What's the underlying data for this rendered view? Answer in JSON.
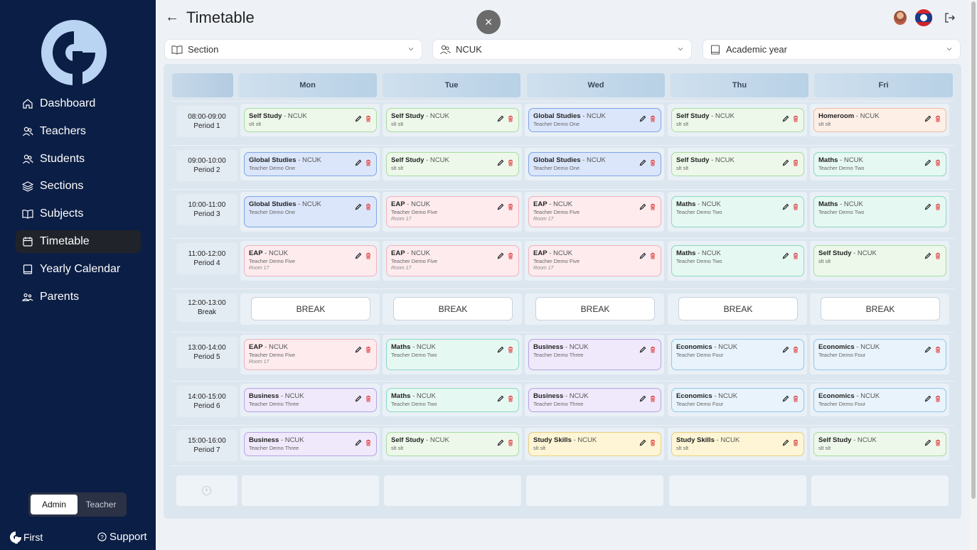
{
  "sidebar": {
    "nav": [
      {
        "label": "Dashboard",
        "icon": "home-icon",
        "active": false
      },
      {
        "label": "Teachers",
        "icon": "users-icon",
        "active": false
      },
      {
        "label": "Students",
        "icon": "users-icon",
        "active": false
      },
      {
        "label": "Sections",
        "icon": "layers-icon",
        "active": false
      },
      {
        "label": "Subjects",
        "icon": "book-open-icon",
        "active": false
      },
      {
        "label": "Timetable",
        "icon": "calendar-icon",
        "active": true
      },
      {
        "label": "Yearly Calendar",
        "icon": "book-icon",
        "active": false
      },
      {
        "label": "Parents",
        "icon": "parents-icon",
        "active": false
      }
    ],
    "roles": {
      "admin": "Admin",
      "teacher": "Teacher",
      "active": "admin"
    },
    "brand": "First",
    "support": "Support"
  },
  "header": {
    "title": "Timetable",
    "close": "×"
  },
  "filters": {
    "section": "Section",
    "group": "NCUK",
    "year": "Academic year"
  },
  "timetable": {
    "days": [
      "Mon",
      "Tue",
      "Wed",
      "Thu",
      "Fri"
    ],
    "break_label": "BREAK",
    "periods": [
      {
        "time": "08:00-09:00",
        "name": "Period 1",
        "cells": [
          {
            "subject": "Self Study",
            "group": "NCUK",
            "teacher": "slt slt",
            "room": "",
            "color": "green"
          },
          {
            "subject": "Self Study",
            "group": "NCUK",
            "teacher": "slt slt",
            "room": "",
            "color": "green"
          },
          {
            "subject": "Global Studies",
            "group": "NCUK",
            "teacher": "Teacher Demo One",
            "room": "",
            "color": "blue"
          },
          {
            "subject": "Self Study",
            "group": "NCUK",
            "teacher": "slt slt",
            "room": "",
            "color": "green"
          },
          {
            "subject": "Homeroom",
            "group": "NCUK",
            "teacher": "slt slt",
            "room": "",
            "color": "peach"
          }
        ]
      },
      {
        "time": "09:00-10:00",
        "name": "Period 2",
        "cells": [
          {
            "subject": "Global Studies",
            "group": "NCUK",
            "teacher": "Teacher Demo One",
            "room": "",
            "color": "blue"
          },
          {
            "subject": "Self Study",
            "group": "NCUK",
            "teacher": "slt slt",
            "room": "",
            "color": "green"
          },
          {
            "subject": "Global Studies",
            "group": "NCUK",
            "teacher": "Teacher Demo One",
            "room": "",
            "color": "blue"
          },
          {
            "subject": "Self Study",
            "group": "NCUK",
            "teacher": "slt slt",
            "room": "",
            "color": "green"
          },
          {
            "subject": "Maths",
            "group": "NCUK",
            "teacher": "Teacher Demo Two",
            "room": "",
            "color": "teal"
          }
        ]
      },
      {
        "time": "10:00-11:00",
        "name": "Period 3",
        "cells": [
          {
            "subject": "Global Studies",
            "group": "NCUK",
            "teacher": "Teacher Demo One",
            "room": "",
            "color": "blue"
          },
          {
            "subject": "EAP",
            "group": "NCUK",
            "teacher": "Teacher Demo Five",
            "room": "Room 17",
            "color": "pink"
          },
          {
            "subject": "EAP",
            "group": "NCUK",
            "teacher": "Teacher Demo Five",
            "room": "Room 17",
            "color": "pink"
          },
          {
            "subject": "Maths",
            "group": "NCUK",
            "teacher": "Teacher Demo Two",
            "room": "",
            "color": "teal"
          },
          {
            "subject": "Maths",
            "group": "NCUK",
            "teacher": "Teacher Demo Two",
            "room": "",
            "color": "teal"
          }
        ]
      },
      {
        "time": "11:00-12:00",
        "name": "Period 4",
        "cells": [
          {
            "subject": "EAP",
            "group": "NCUK",
            "teacher": "Teacher Demo Five",
            "room": "Room 17",
            "color": "pink"
          },
          {
            "subject": "EAP",
            "group": "NCUK",
            "teacher": "Teacher Demo Five",
            "room": "Room 17",
            "color": "pink"
          },
          {
            "subject": "EAP",
            "group": "NCUK",
            "teacher": "Teacher Demo Five",
            "room": "Room 17",
            "color": "pink"
          },
          {
            "subject": "Maths",
            "group": "NCUK",
            "teacher": "Teacher Demo Two",
            "room": "",
            "color": "teal"
          },
          {
            "subject": "Self Study",
            "group": "NCUK",
            "teacher": "slt slt",
            "room": "",
            "color": "green"
          }
        ]
      },
      {
        "time": "12:00-13:00",
        "name": "Break",
        "is_break": true,
        "cells": []
      },
      {
        "time": "13:00-14:00",
        "name": "Period 5",
        "cells": [
          {
            "subject": "EAP",
            "group": "NCUK",
            "teacher": "Teacher Demo Five",
            "room": "Room 17",
            "color": "pink"
          },
          {
            "subject": "Maths",
            "group": "NCUK",
            "teacher": "Teacher Demo Two",
            "room": "",
            "color": "teal"
          },
          {
            "subject": "Business",
            "group": "NCUK",
            "teacher": "Teacher Demo Three",
            "room": "",
            "color": "purple"
          },
          {
            "subject": "Economics",
            "group": "NCUK",
            "teacher": "Teacher Demo Four",
            "room": "",
            "color": "sky"
          },
          {
            "subject": "Economics",
            "group": "NCUK",
            "teacher": "Teacher Demo Four",
            "room": "",
            "color": "sky"
          }
        ]
      },
      {
        "time": "14:00-15:00",
        "name": "Period 6",
        "cells": [
          {
            "subject": "Business",
            "group": "NCUK",
            "teacher": "Teacher Demo Three",
            "room": "",
            "color": "purple"
          },
          {
            "subject": "Maths",
            "group": "NCUK",
            "teacher": "Teacher Demo Two",
            "room": "",
            "color": "teal"
          },
          {
            "subject": "Business",
            "group": "NCUK",
            "teacher": "Teacher Demo Three",
            "room": "",
            "color": "purple"
          },
          {
            "subject": "Economics",
            "group": "NCUK",
            "teacher": "Teacher Demo Four",
            "room": "",
            "color": "sky"
          },
          {
            "subject": "Economics",
            "group": "NCUK",
            "teacher": "Teacher Demo Four",
            "room": "",
            "color": "sky"
          }
        ]
      },
      {
        "time": "15:00-16:00",
        "name": "Period 7",
        "cells": [
          {
            "subject": "Business",
            "group": "NCUK",
            "teacher": "Teacher Demo Three",
            "room": "",
            "color": "purple"
          },
          {
            "subject": "Self Study",
            "group": "NCUK",
            "teacher": "slt slt",
            "room": "",
            "color": "green"
          },
          {
            "subject": "Study Skills",
            "group": "NCUK",
            "teacher": "slt slt",
            "room": "",
            "color": "yellow"
          },
          {
            "subject": "Study Skills",
            "group": "NCUK",
            "teacher": "slt slt",
            "room": "",
            "color": "yellow"
          },
          {
            "subject": "Self Study",
            "group": "NCUK",
            "teacher": "slt slt",
            "room": "",
            "color": "green"
          }
        ]
      }
    ]
  },
  "colors": {
    "sidebar_bg": "#0b1e45",
    "edit_icon": "#222222",
    "delete_icon": "#e04b4b"
  }
}
